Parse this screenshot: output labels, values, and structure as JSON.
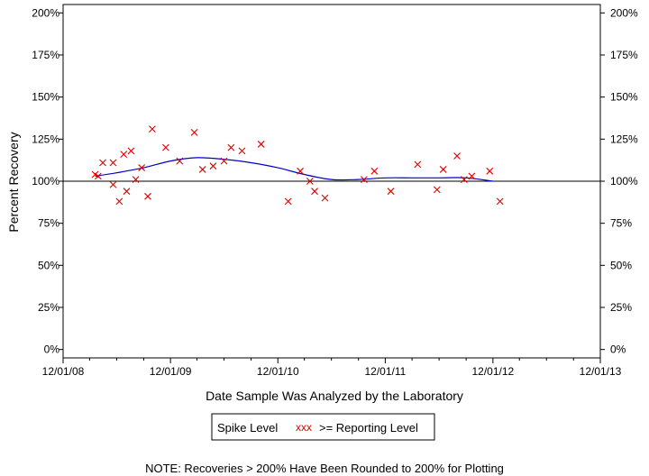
{
  "chart_data": {
    "type": "scatter",
    "xlabel": "Date Sample Was Analyzed by the Laboratory",
    "ylabel": "Percent Recovery",
    "x_ticks": [
      "12/01/08",
      "12/01/09",
      "12/01/10",
      "12/01/11",
      "12/01/12",
      "12/01/13"
    ],
    "xlim": [
      "2008-12-01",
      "2013-12-01"
    ],
    "y_ticks": [
      0,
      25,
      50,
      75,
      100,
      125,
      150,
      175,
      200
    ],
    "y_tick_labels": [
      "0%",
      "25%",
      "50%",
      "75%",
      "100%",
      "125%",
      "150%",
      "175%",
      "200%"
    ],
    "ylim": [
      -5,
      205
    ],
    "reference_line": 100,
    "grid": false,
    "colors": {
      "points": "#dd0000",
      "trend": "#0000cc",
      "axes": "#000000"
    },
    "series": [
      {
        "name": ">= Reporting Level",
        "marker": "x",
        "points": [
          {
            "x": "2009-03-20",
            "y": 104
          },
          {
            "x": "2009-03-30",
            "y": 103
          },
          {
            "x": "2009-04-15",
            "y": 111
          },
          {
            "x": "2009-05-20",
            "y": 111
          },
          {
            "x": "2009-05-20",
            "y": 98
          },
          {
            "x": "2009-06-10",
            "y": 88
          },
          {
            "x": "2009-06-25",
            "y": 116
          },
          {
            "x": "2009-07-05",
            "y": 94
          },
          {
            "x": "2009-07-20",
            "y": 118
          },
          {
            "x": "2009-08-05",
            "y": 101
          },
          {
            "x": "2009-08-25",
            "y": 108
          },
          {
            "x": "2009-09-15",
            "y": 91
          },
          {
            "x": "2009-09-30",
            "y": 131
          },
          {
            "x": "2009-11-15",
            "y": 120
          },
          {
            "x": "2010-01-01",
            "y": 112
          },
          {
            "x": "2010-02-20",
            "y": 129
          },
          {
            "x": "2010-03-20",
            "y": 107
          },
          {
            "x": "2010-04-25",
            "y": 109
          },
          {
            "x": "2010-06-01",
            "y": 112
          },
          {
            "x": "2010-06-25",
            "y": 120
          },
          {
            "x": "2010-08-01",
            "y": 118
          },
          {
            "x": "2010-10-05",
            "y": 122
          },
          {
            "x": "2011-01-05",
            "y": 88
          },
          {
            "x": "2011-02-15",
            "y": 106
          },
          {
            "x": "2011-03-20",
            "y": 100
          },
          {
            "x": "2011-04-05",
            "y": 94
          },
          {
            "x": "2011-05-10",
            "y": 90
          },
          {
            "x": "2011-09-20",
            "y": 101
          },
          {
            "x": "2011-10-25",
            "y": 106
          },
          {
            "x": "2011-12-20",
            "y": 94
          },
          {
            "x": "2012-03-20",
            "y": 110
          },
          {
            "x": "2012-05-25",
            "y": 95
          },
          {
            "x": "2012-06-15",
            "y": 107
          },
          {
            "x": "2012-08-01",
            "y": 115
          },
          {
            "x": "2012-08-25",
            "y": 101
          },
          {
            "x": "2012-09-20",
            "y": 103
          },
          {
            "x": "2012-11-20",
            "y": 106
          },
          {
            "x": "2012-12-25",
            "y": 88
          }
        ]
      }
    ],
    "trend": [
      {
        "x": "2009-03-20",
        "y": 103
      },
      {
        "x": "2009-06-01",
        "y": 105
      },
      {
        "x": "2009-09-01",
        "y": 108
      },
      {
        "x": "2009-12-01",
        "y": 112
      },
      {
        "x": "2010-03-01",
        "y": 114
      },
      {
        "x": "2010-06-01",
        "y": 113
      },
      {
        "x": "2010-09-01",
        "y": 111
      },
      {
        "x": "2010-12-01",
        "y": 108
      },
      {
        "x": "2011-03-01",
        "y": 104
      },
      {
        "x": "2011-06-01",
        "y": 101
      },
      {
        "x": "2011-09-01",
        "y": 101
      },
      {
        "x": "2011-12-01",
        "y": 102
      },
      {
        "x": "2012-03-01",
        "y": 102
      },
      {
        "x": "2012-06-01",
        "y": 102
      },
      {
        "x": "2012-09-01",
        "y": 102
      },
      {
        "x": "2012-12-01",
        "y": 100
      }
    ],
    "legend": {
      "label": "Spike Level",
      "marker_glyph": "xxx",
      "entry": ">= Reporting Level"
    },
    "note": "NOTE: Recoveries > 200% Have Been Rounded to 200% for Plotting"
  }
}
